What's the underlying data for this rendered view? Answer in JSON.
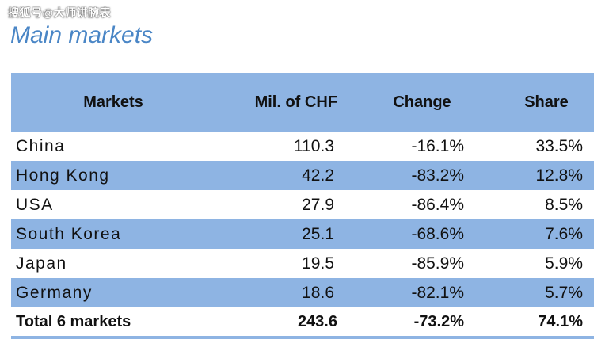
{
  "watermark": "搜狐号@大师讲腕表",
  "title": "Main markets",
  "chart_data": {
    "type": "table",
    "columns": [
      "Markets",
      "Mil. of CHF",
      "Change",
      "Share"
    ],
    "rows": [
      {
        "market": "China",
        "value": "110.3",
        "change": "-16.1%",
        "share": "33.5%"
      },
      {
        "market": "Hong Kong",
        "value": "42.2",
        "change": "-83.2%",
        "share": "12.8%"
      },
      {
        "market": "USA",
        "value": "27.9",
        "change": "-86.4%",
        "share": "8.5%"
      },
      {
        "market": "South Korea",
        "value": "25.1",
        "change": "-68.6%",
        "share": "7.6%"
      },
      {
        "market": "Japan",
        "value": "19.5",
        "change": "-85.9%",
        "share": "5.9%"
      },
      {
        "market": "Germany",
        "value": "18.6",
        "change": "-82.1%",
        "share": "5.7%"
      }
    ],
    "total": {
      "market": "Total 6 markets",
      "value": "243.6",
      "change": "-73.2%",
      "share": "74.1%"
    }
  },
  "colors": {
    "title": "#4a86c6",
    "header_bg": "#8eb4e3",
    "stripe_bg": "#8eb4e3"
  }
}
